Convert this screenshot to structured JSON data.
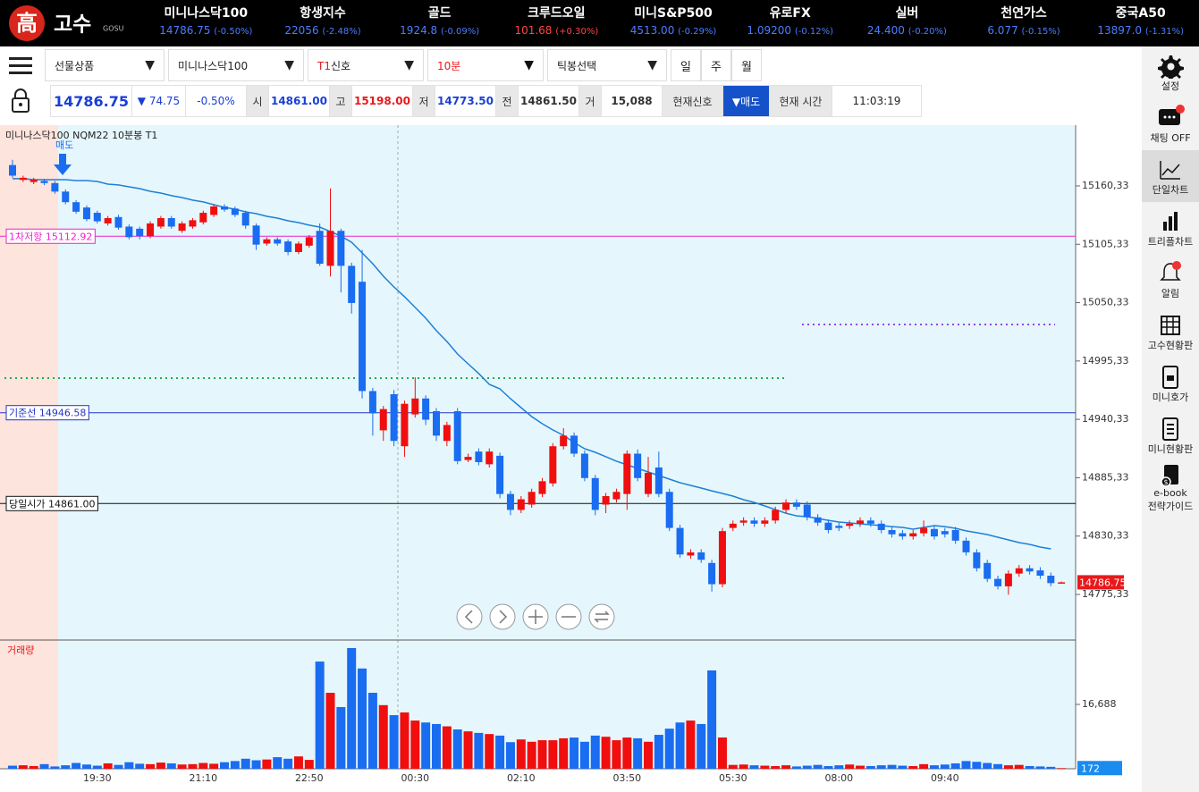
{
  "header": {
    "logo_char": "高",
    "logo_text": "고수",
    "logo_sub": "GOSU",
    "tickers": [
      {
        "name": "미니나스닥100",
        "price": "14786.75",
        "change": "(-0.50%)"
      },
      {
        "name": "항생지수",
        "price": "22056",
        "change": "(-2.48%)"
      },
      {
        "name": "골드",
        "price": "1924.8",
        "change": "(-0.09%)"
      },
      {
        "name": "크루드오일",
        "price": "101.68",
        "change": "(+0.30%)"
      },
      {
        "name": "미니S&P500",
        "price": "4513.00",
        "change": "(-0.29%)"
      },
      {
        "name": "유로FX",
        "price": "1.09200",
        "change": "(-0.12%)"
      },
      {
        "name": "실버",
        "price": "24.400",
        "change": "(-0.20%)"
      },
      {
        "name": "천연가스",
        "price": "6.077",
        "change": "(-0.15%)"
      },
      {
        "name": "중국A50",
        "price": "13897.0",
        "change": "(-1.31%)"
      }
    ]
  },
  "toolbar": {
    "product": "선물상품",
    "symbol": "미니나스닥100",
    "signal_prefix": "T1",
    "signal": "신호",
    "interval": "10분",
    "tick": "틱봉선택",
    "periods": [
      "일",
      "주",
      "월"
    ]
  },
  "quote": {
    "price": "14786.75",
    "change": "▼ 74.75",
    "rate": "-0.50%",
    "fields": [
      {
        "label": "시",
        "value": "14861.00",
        "color": "#1a3fd6"
      },
      {
        "label": "고",
        "value": "15198.00",
        "color": "#e8191b"
      },
      {
        "label": "저",
        "value": "14773.50",
        "color": "#1a3fd6"
      },
      {
        "label": "전",
        "value": "14861.50",
        "color": "#333333"
      },
      {
        "label": "거",
        "value": "15,088",
        "color": "#333333"
      }
    ],
    "signal_label": "현재신호",
    "signal": "▼매도",
    "time_label": "현재 시간",
    "time": "11:03:19"
  },
  "sidebar": [
    {
      "lines": [
        "설정"
      ]
    },
    {
      "lines": [
        "채팅 OFF"
      ]
    },
    {
      "lines": [
        "단일차트"
      ],
      "active": true
    },
    {
      "lines": [
        "트리플차트"
      ]
    },
    {
      "lines": [
        "알림"
      ]
    },
    {
      "lines": [
        "고수현황판"
      ]
    },
    {
      "lines": [
        "미니호가"
      ]
    },
    {
      "lines": [
        "미니현황판"
      ]
    },
    {
      "lines": [
        "e-book",
        "전략가이드"
      ]
    }
  ],
  "chart_data": {
    "type": "candlestick",
    "title": "미니나스닥100  NQM22  10분봉  T1",
    "annotation": "매도",
    "volume_title": "거래량",
    "up_color": "#f00e0e",
    "down_color": "#1a6cf0",
    "categories": [
      null,
      null,
      null,
      null,
      null,
      null,
      null,
      null,
      "19:30",
      null,
      null,
      null,
      null,
      null,
      null,
      null,
      null,
      null,
      "21:10",
      null,
      null,
      null,
      null,
      null,
      null,
      null,
      null,
      null,
      "22:50",
      null,
      null,
      null,
      null,
      null,
      null,
      null,
      null,
      null,
      "00:30",
      null,
      null,
      null,
      null,
      null,
      null,
      null,
      null,
      null,
      "02:10",
      null,
      null,
      null,
      null,
      null,
      null,
      null,
      null,
      null,
      "03:50",
      null,
      null,
      null,
      null,
      null,
      null,
      null,
      null,
      null,
      "05:30",
      null,
      null,
      null,
      null,
      null,
      null,
      null,
      null,
      null,
      "08:00",
      null,
      null,
      null,
      null,
      null,
      null,
      null,
      null,
      null,
      "09:40",
      null,
      null,
      null,
      null,
      null,
      null,
      null,
      null,
      null,
      null,
      null
    ],
    "open": [
      15180,
      15166,
      15164,
      15165,
      15163,
      15155,
      15145,
      15140,
      15135,
      15125,
      15131,
      15122,
      15120,
      15113,
      15122,
      15130,
      15118,
      15122,
      15126,
      15133,
      15141,
      15139,
      15135,
      15123,
      15106,
      15110,
      15108,
      15098,
      15104,
      15118,
      15085,
      15118,
      15085,
      15070,
      14967,
      14930,
      14964,
      14915,
      14945,
      14960,
      14948,
      14920,
      14948,
      14902,
      14910,
      14898,
      14906,
      14870,
      14855,
      14860,
      14870,
      14880,
      14915,
      14925,
      14908,
      14885,
      14860,
      14865,
      14870,
      14908,
      14870,
      14895,
      14872,
      14838,
      14812,
      14815,
      14805,
      14785,
      14838,
      14843,
      14845,
      14842,
      14845,
      14855,
      14862,
      14860,
      14848,
      14843,
      14840,
      14840,
      14842,
      14845,
      14842,
      14836,
      14833,
      14830,
      14833,
      14837,
      14835,
      14836,
      14826,
      14815,
      14805,
      14790,
      14783,
      14795,
      14800,
      14798,
      14793,
      14786.75
    ],
    "high": [
      15185,
      15170,
      15168,
      15167,
      15165,
      15157,
      15147,
      15142,
      15137,
      15132,
      15133,
      15124,
      15122,
      15127,
      15132,
      15132,
      15127,
      15130,
      15137,
      15143,
      15143,
      15141,
      15137,
      15125,
      15112,
      15112,
      15110,
      15108,
      15114,
      15125,
      15158,
      15120,
      15088,
      15100,
      14970,
      14953,
      14968,
      14958,
      14980,
      14963,
      14951,
      14938,
      14951,
      14908,
      14913,
      14913,
      14909,
      14873,
      14868,
      14875,
      14885,
      14918,
      14932,
      14928,
      14911,
      14888,
      14871,
      14875,
      14911,
      14912,
      14905,
      14910,
      14875,
      14841,
      14818,
      14818,
      14808,
      14838,
      14845,
      14848,
      14848,
      14848,
      14858,
      14865,
      14865,
      14863,
      14851,
      14846,
      14843,
      14845,
      14848,
      14848,
      14845,
      14839,
      14836,
      14836,
      14845,
      14840,
      14838,
      14839,
      14829,
      14818,
      14808,
      14793,
      14798,
      14803,
      14803,
      14801,
      14796,
      14787.5
    ],
    "low": [
      15168,
      15164,
      15162,
      15161,
      15153,
      15143,
      15134,
      15127,
      15125,
      15123,
      15119,
      15110,
      15110,
      15111,
      15120,
      15120,
      15116,
      15120,
      15124,
      15131,
      15136,
      15131,
      15120,
      15100,
      15104,
      15104,
      15095,
      15096,
      15102,
      15085,
      15075,
      15060,
      15040,
      14960,
      14925,
      14920,
      14915,
      14905,
      14942,
      14935,
      14920,
      14915,
      14898,
      14900,
      14897,
      14895,
      14866,
      14850,
      14852,
      14857,
      14867,
      14877,
      14912,
      14905,
      14882,
      14850,
      14852,
      14862,
      14855,
      14882,
      14867,
      14867,
      14835,
      14810,
      14809,
      14805,
      14778,
      14782,
      14835,
      14840,
      14839,
      14839,
      14842,
      14852,
      14855,
      14845,
      14840,
      14833,
      14835,
      14837,
      14839,
      14839,
      14833,
      14829,
      14827,
      14827,
      14830,
      14827,
      14829,
      14823,
      14812,
      14797,
      14787,
      14780,
      14775,
      14792,
      14794,
      14790,
      14783,
      14786.5
    ],
    "close": [
      15170,
      15168,
      15166,
      15163,
      15155,
      15145,
      15136,
      15129,
      15127,
      15130,
      15121,
      15112,
      15113,
      15125,
      15130,
      15122,
      15125,
      15128,
      15135,
      15141,
      15138,
      15133,
      15123,
      15105,
      15110,
      15106,
      15098,
      15106,
      15112,
      15087,
      15118,
      15085,
      15050,
      14967,
      14946,
      14950,
      14920,
      14955,
      14960,
      14940,
      14925,
      14935,
      14901,
      14905,
      14900,
      14910,
      14870,
      14855,
      14865,
      14872,
      14882,
      14915,
      14925,
      14908,
      14885,
      14855,
      14868,
      14872,
      14908,
      14885,
      14890,
      14870,
      14838,
      14813,
      14815,
      14808,
      14785,
      14835,
      14842,
      14845,
      14842,
      14845,
      14855,
      14862,
      14858,
      14848,
      14843,
      14836,
      14838,
      14842,
      14845,
      14842,
      14836,
      14832,
      14830,
      14833,
      14838,
      14830,
      14832,
      14826,
      14815,
      14800,
      14790,
      14783,
      14795,
      14800,
      14797,
      14793,
      14786,
      14786.75
    ],
    "ma": {
      "color": "#1e7fd6",
      "values": [
        15167.1,
        15167.1,
        15166.2,
        15166.2,
        15166.2,
        15166.2,
        15165.4,
        15165.4,
        15164.5,
        15162.0,
        15161.2,
        15159.5,
        15157.8,
        15155.3,
        15153.6,
        15151.1,
        15149.4,
        15146.9,
        15145.2,
        15142.6,
        15140.1,
        15138.4,
        15135.9,
        15134.2,
        15131.7,
        15130.0,
        15127.5,
        15125.8,
        15123.3,
        15121.6,
        15117.3,
        15113.1,
        15107.2,
        15097.1,
        15087.0,
        15075.2,
        15065.1,
        15055.9,
        15045.8,
        15035.7,
        15023.9,
        15013.7,
        15001.9,
        14992.7,
        14983.6,
        14973.3,
        14969.1,
        14959.8,
        14951.4,
        14943.0,
        14936.2,
        14930.3,
        14925.3,
        14918.5,
        14912.6,
        14909.3,
        14905.1,
        14900.9,
        14897.5,
        14894.1,
        14890.7,
        14887.4,
        14884.0,
        14880.6,
        14878.1,
        14875.6,
        14873.0,
        14870.5,
        14868.0,
        14864.6,
        14862.1,
        14858.7,
        14855.3,
        14851.9,
        14849.4,
        14848.6,
        14846.9,
        14845.2,
        14843.6,
        14842.7,
        14841.9,
        14841.0,
        14840.2,
        14839.3,
        14838.5,
        14836.8,
        14838.5,
        14840.2,
        14839.3,
        14837.7,
        14835.2,
        14833.5,
        14831.8,
        14829.2,
        14826.7,
        14824.2,
        14822.5,
        14820.0,
        14818.3,
        null
      ]
    },
    "volume": [
      800,
      900,
      700,
      1200,
      600,
      900,
      1500,
      1100,
      800,
      1400,
      1000,
      1700,
      1300,
      1200,
      1600,
      1400,
      1100,
      1200,
      1500,
      1300,
      1700,
      2000,
      2600,
      2200,
      2400,
      3000,
      2600,
      3200,
      2300,
      27800,
      19700,
      16000,
      31300,
      26000,
      19700,
      16500,
      13900,
      14600,
      12500,
      12000,
      11600,
      11000,
      10200,
      9700,
      9300,
      9000,
      8600,
      6900,
      7600,
      7000,
      7400,
      7400,
      7900,
      8100,
      7000,
      8600,
      8300,
      7400,
      8100,
      7900,
      7000,
      8800,
      10400,
      12000,
      12500,
      11600,
      25500,
      8100,
      1000,
      1100,
      900,
      800,
      700,
      900,
      600,
      800,
      1000,
      700,
      900,
      1100,
      800,
      700,
      900,
      1000,
      800,
      700,
      1200,
      900,
      1100,
      1400,
      2000,
      1800,
      1500,
      1200,
      900,
      1000,
      700,
      600,
      500,
      172
    ],
    "ylim": [
      14733.2,
      15217.6
    ],
    "yticks": [
      {
        "value": 15160.33,
        "label": "15160,33"
      },
      {
        "value": 15105.33,
        "label": "15105,33"
      },
      {
        "value": 15050.33,
        "label": "15050,33"
      },
      {
        "value": 14995.33,
        "label": "14995,33"
      },
      {
        "value": 14940.33,
        "label": "14940,33"
      },
      {
        "value": 14885.33,
        "label": "14885,33"
      },
      {
        "value": 14830.33,
        "label": "14830,33"
      },
      {
        "value": 14775.33,
        "label": "14775,33"
      }
    ],
    "volume_ylim": [
      0,
      33150
    ],
    "volume_yticks": [
      {
        "value": 16688,
        "label": "16,688"
      }
    ],
    "levels": [
      {
        "label": "1차저항 15112.92",
        "value": 15112.92,
        "color": "#ee22cc"
      },
      {
        "label": "기준선 14946.58",
        "value": 14946.58,
        "color": "#2233cc"
      },
      {
        "label": "당일시가 14861.00",
        "value": 14861.0,
        "color": "#111111"
      }
    ],
    "dotted_lines": [
      {
        "value": 14979.2,
        "color": "#22aa55"
      },
      {
        "value": 15029.7,
        "color": "#9944ee"
      }
    ]
  }
}
